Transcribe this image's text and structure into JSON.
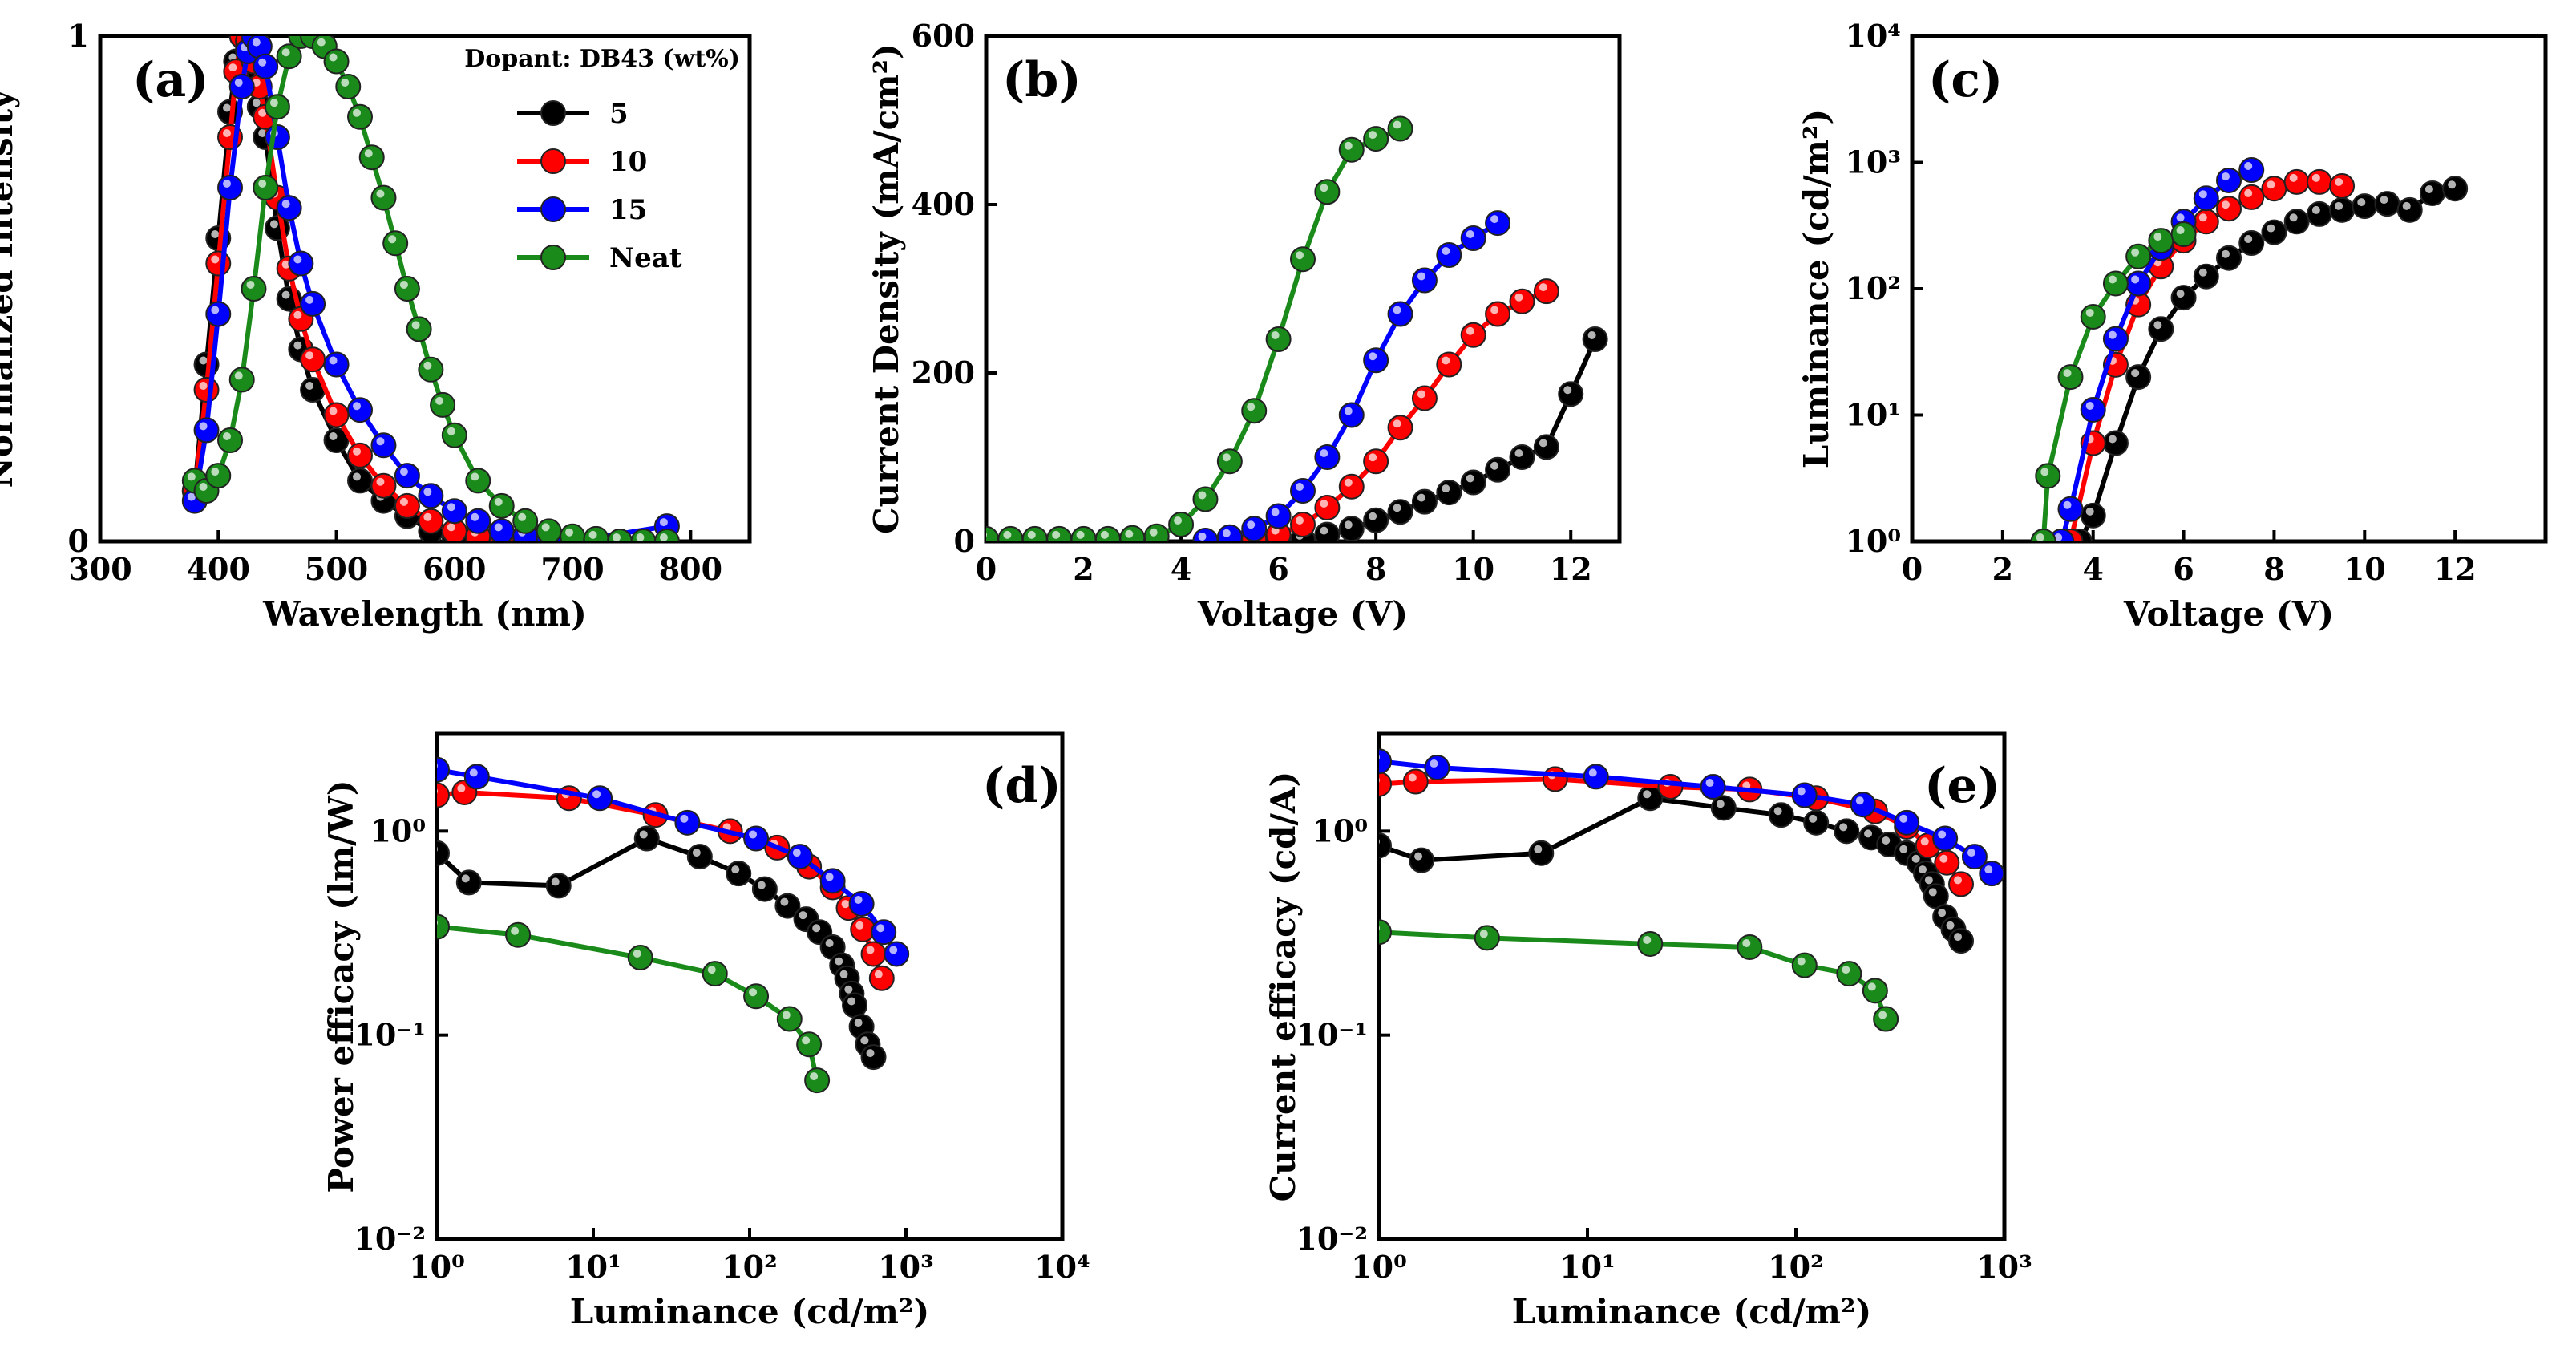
{
  "colors": {
    "5": "#000000",
    "10": "#ff0000",
    "15": "#0000ff",
    "Neat": "#1a8a1a"
  },
  "chart_data": [
    {
      "id": "a",
      "panel_label": "(a)",
      "type": "scatter",
      "xlabel": "Wavelength (nm)",
      "ylabel": "Normalized Intensity",
      "xlim": [
        300,
        850
      ],
      "ylim": [
        0,
        1.0
      ],
      "x_ticks": [
        300,
        400,
        500,
        600,
        700,
        800
      ],
      "y_ticks": [
        0,
        1
      ],
      "legend": {
        "title": "Dopant: DB43 (wt%)",
        "position": "top-right",
        "entries": [
          "5",
          "10",
          "15",
          "Neat"
        ]
      },
      "series": [
        {
          "name": "5",
          "x": [
            380,
            390,
            400,
            410,
            415,
            420,
            425,
            430,
            435,
            440,
            450,
            460,
            470,
            480,
            500,
            520,
            540,
            560,
            580,
            600,
            620
          ],
          "y": [
            0.1,
            0.35,
            0.6,
            0.85,
            0.95,
            1.0,
            0.98,
            0.93,
            0.86,
            0.8,
            0.62,
            0.48,
            0.38,
            0.3,
            0.2,
            0.12,
            0.08,
            0.05,
            0.02,
            0.01,
            0.0
          ]
        },
        {
          "name": "10",
          "x": [
            380,
            390,
            400,
            410,
            415,
            420,
            425,
            430,
            435,
            440,
            450,
            460,
            470,
            480,
            500,
            520,
            540,
            560,
            580,
            600,
            620,
            640,
            660
          ],
          "y": [
            0.1,
            0.3,
            0.55,
            0.8,
            0.93,
            1.0,
            0.99,
            0.95,
            0.9,
            0.84,
            0.68,
            0.54,
            0.44,
            0.36,
            0.25,
            0.17,
            0.11,
            0.07,
            0.04,
            0.02,
            0.01,
            0.0,
            0.0
          ]
        },
        {
          "name": "15",
          "x": [
            380,
            390,
            400,
            410,
            420,
            425,
            430,
            435,
            440,
            450,
            460,
            470,
            480,
            500,
            520,
            540,
            560,
            580,
            600,
            620,
            640,
            660,
            680,
            700,
            780
          ],
          "y": [
            0.08,
            0.22,
            0.45,
            0.7,
            0.9,
            0.97,
            1.0,
            0.98,
            0.94,
            0.8,
            0.66,
            0.55,
            0.47,
            0.35,
            0.26,
            0.19,
            0.13,
            0.09,
            0.06,
            0.04,
            0.02,
            0.01,
            0.005,
            0.0,
            0.03
          ]
        },
        {
          "name": "Neat",
          "x": [
            380,
            390,
            400,
            410,
            420,
            430,
            440,
            450,
            460,
            470,
            480,
            490,
            500,
            510,
            520,
            530,
            540,
            550,
            560,
            570,
            580,
            590,
            600,
            620,
            640,
            660,
            680,
            700,
            720,
            740,
            760,
            780
          ],
          "y": [
            0.12,
            0.1,
            0.13,
            0.2,
            0.32,
            0.5,
            0.7,
            0.86,
            0.96,
            1.0,
            1.0,
            0.98,
            0.95,
            0.9,
            0.84,
            0.76,
            0.68,
            0.59,
            0.5,
            0.42,
            0.34,
            0.27,
            0.21,
            0.12,
            0.07,
            0.04,
            0.02,
            0.01,
            0.005,
            0.0,
            0.0,
            0.0
          ]
        }
      ]
    },
    {
      "id": "b",
      "panel_label": "(b)",
      "type": "line",
      "xlabel": "Voltage (V)",
      "ylabel": "Current Density (mA/cm²)",
      "xlim": [
        0,
        13
      ],
      "ylim": [
        0,
        600
      ],
      "x_ticks": [
        0,
        2,
        4,
        6,
        8,
        10,
        12
      ],
      "y_ticks": [
        0,
        200,
        400,
        600
      ],
      "series": [
        {
          "name": "5",
          "x": [
            6.5,
            7,
            7.5,
            8,
            8.5,
            9,
            9.5,
            10,
            10.5,
            11,
            11.5,
            12,
            12.5
          ],
          "y": [
            2,
            8,
            15,
            25,
            35,
            47,
            58,
            70,
            85,
            100,
            112,
            175,
            240
          ]
        },
        {
          "name": "10",
          "x": [
            5.5,
            6,
            6.5,
            7,
            7.5,
            8,
            8.5,
            9,
            9.5,
            10,
            10.5,
            11,
            11.5
          ],
          "y": [
            3,
            8,
            20,
            40,
            65,
            95,
            135,
            170,
            210,
            245,
            270,
            285,
            297
          ]
        },
        {
          "name": "15",
          "x": [
            4.5,
            5,
            5.5,
            6,
            6.5,
            7,
            7.5,
            8,
            8.5,
            9,
            9.5,
            10,
            10.5
          ],
          "y": [
            1,
            5,
            15,
            30,
            60,
            100,
            150,
            215,
            270,
            310,
            340,
            360,
            378
          ]
        },
        {
          "name": "Neat",
          "x": [
            0,
            0.5,
            1,
            1.5,
            2,
            2.5,
            3,
            3.5,
            4,
            4.5,
            5,
            5.5,
            6,
            6.5,
            7,
            7.5,
            8,
            8.5
          ],
          "y": [
            3,
            3,
            3,
            3,
            3,
            3,
            4,
            6,
            20,
            50,
            95,
            155,
            240,
            335,
            415,
            465,
            478,
            490
          ]
        }
      ]
    },
    {
      "id": "c",
      "panel_label": "(c)",
      "type": "line",
      "yscale": "log",
      "xlabel": "Voltage (V)",
      "ylabel": "Luminance (cd/m²)",
      "xlim": [
        0,
        14
      ],
      "ylim": [
        1,
        10000
      ],
      "x_ticks": [
        0,
        2,
        4,
        6,
        8,
        10,
        12
      ],
      "y_ticks": [
        1,
        10,
        100,
        1000,
        10000
      ],
      "y_tick_labels": [
        "10⁰",
        "10¹",
        "10²",
        "10³",
        "10⁴"
      ],
      "series": [
        {
          "name": "5",
          "x": [
            3.7,
            4,
            4.5,
            5,
            5.5,
            6,
            6.5,
            7,
            7.5,
            8,
            8.5,
            9,
            9.5,
            10,
            10.5,
            11,
            11.5,
            12
          ],
          "y": [
            1,
            1.6,
            6,
            20,
            48,
            85,
            125,
            175,
            230,
            280,
            340,
            390,
            420,
            450,
            470,
            420,
            570,
            620
          ]
        },
        {
          "name": "10",
          "x": [
            3.5,
            4,
            4.5,
            5,
            5.5,
            6,
            6.5,
            7,
            7.5,
            8,
            8.5,
            9,
            9.5
          ],
          "y": [
            1,
            6,
            25,
            75,
            150,
            240,
            340,
            430,
            530,
            620,
            700,
            700,
            650
          ]
        },
        {
          "name": "15",
          "x": [
            3.3,
            3.5,
            4,
            4.5,
            5,
            5.5,
            6,
            6.5,
            7,
            7.5
          ],
          "y": [
            1,
            1.8,
            11,
            40,
            110,
            210,
            340,
            520,
            720,
            870
          ]
        },
        {
          "name": "Neat",
          "x": [
            2.9,
            3,
            3.5,
            4,
            4.5,
            5,
            5.5,
            6
          ],
          "y": [
            1,
            3.3,
            20,
            60,
            110,
            180,
            240,
            270
          ]
        }
      ]
    },
    {
      "id": "d",
      "panel_label": "(d)",
      "type": "line",
      "xscale": "log",
      "yscale": "log",
      "xlabel": "Luminance (cd/m²)",
      "ylabel": "Power efficacy (lm/W)",
      "xlim": [
        1,
        10000
      ],
      "ylim": [
        0.01,
        3
      ],
      "x_ticks": [
        1,
        10,
        100,
        1000,
        10000
      ],
      "x_tick_labels": [
        "10⁰",
        "10¹",
        "10²",
        "10³",
        "10⁴"
      ],
      "y_ticks": [
        0.01,
        0.1,
        1
      ],
      "y_tick_labels": [
        "10⁻²",
        "10⁻¹",
        "10⁰"
      ],
      "series": [
        {
          "name": "5",
          "x": [
            1,
            1.6,
            6,
            22,
            48,
            85,
            125,
            175,
            230,
            280,
            340,
            390,
            420,
            450,
            470,
            520,
            570,
            620
          ],
          "y": [
            0.78,
            0.56,
            0.54,
            0.92,
            0.75,
            0.62,
            0.52,
            0.43,
            0.37,
            0.32,
            0.27,
            0.22,
            0.19,
            0.16,
            0.14,
            0.11,
            0.09,
            0.078
          ]
        },
        {
          "name": "10",
          "x": [
            1,
            1.5,
            7,
            25,
            75,
            150,
            240,
            340,
            430,
            530,
            620,
            700
          ],
          "y": [
            1.5,
            1.55,
            1.45,
            1.2,
            1.0,
            0.83,
            0.67,
            0.53,
            0.42,
            0.33,
            0.25,
            0.19
          ]
        },
        {
          "name": "15",
          "x": [
            1,
            1.8,
            11,
            40,
            110,
            210,
            340,
            520,
            720,
            870
          ],
          "y": [
            2.0,
            1.85,
            1.45,
            1.1,
            0.92,
            0.75,
            0.57,
            0.44,
            0.32,
            0.25
          ]
        },
        {
          "name": "Neat",
          "x": [
            1,
            3.3,
            20,
            60,
            110,
            180,
            240,
            270
          ],
          "y": [
            0.34,
            0.31,
            0.24,
            0.2,
            0.155,
            0.12,
            0.09,
            0.06
          ]
        }
      ]
    },
    {
      "id": "e",
      "panel_label": "(e)",
      "type": "line",
      "xscale": "log",
      "yscale": "log",
      "xlabel": "Luminance (cd/m²)",
      "ylabel": "Current efficacy (cd/A)",
      "xlim": [
        1,
        1000
      ],
      "ylim": [
        0.01,
        3
      ],
      "x_ticks": [
        1,
        10,
        100,
        1000
      ],
      "x_tick_labels": [
        "10⁰",
        "10¹",
        "10²",
        "10³"
      ],
      "y_ticks": [
        0.01,
        0.1,
        1
      ],
      "y_tick_labels": [
        "10⁻²",
        "10⁻¹",
        "10⁰"
      ],
      "series": [
        {
          "name": "5",
          "x": [
            1,
            1.6,
            6,
            20,
            45,
            85,
            125,
            175,
            230,
            280,
            340,
            390,
            420,
            450,
            470,
            520,
            570,
            620
          ],
          "y": [
            0.85,
            0.72,
            0.78,
            1.45,
            1.3,
            1.2,
            1.1,
            1.0,
            0.93,
            0.86,
            0.78,
            0.7,
            0.62,
            0.55,
            0.48,
            0.38,
            0.33,
            0.29
          ]
        },
        {
          "name": "10",
          "x": [
            1,
            1.5,
            7,
            25,
            60,
            125,
            240,
            340,
            430,
            530,
            620
          ],
          "y": [
            1.7,
            1.75,
            1.8,
            1.65,
            1.6,
            1.45,
            1.25,
            1.05,
            0.85,
            0.7,
            0.55
          ]
        },
        {
          "name": "15",
          "x": [
            1,
            1.9,
            11,
            40,
            110,
            210,
            340,
            520,
            720,
            870
          ],
          "y": [
            2.2,
            2.05,
            1.85,
            1.65,
            1.5,
            1.35,
            1.1,
            0.92,
            0.75,
            0.62
          ]
        },
        {
          "name": "Neat",
          "x": [
            1,
            3.3,
            20,
            60,
            110,
            180,
            240,
            270
          ],
          "y": [
            0.32,
            0.3,
            0.28,
            0.27,
            0.22,
            0.2,
            0.165,
            0.12
          ]
        }
      ]
    }
  ]
}
